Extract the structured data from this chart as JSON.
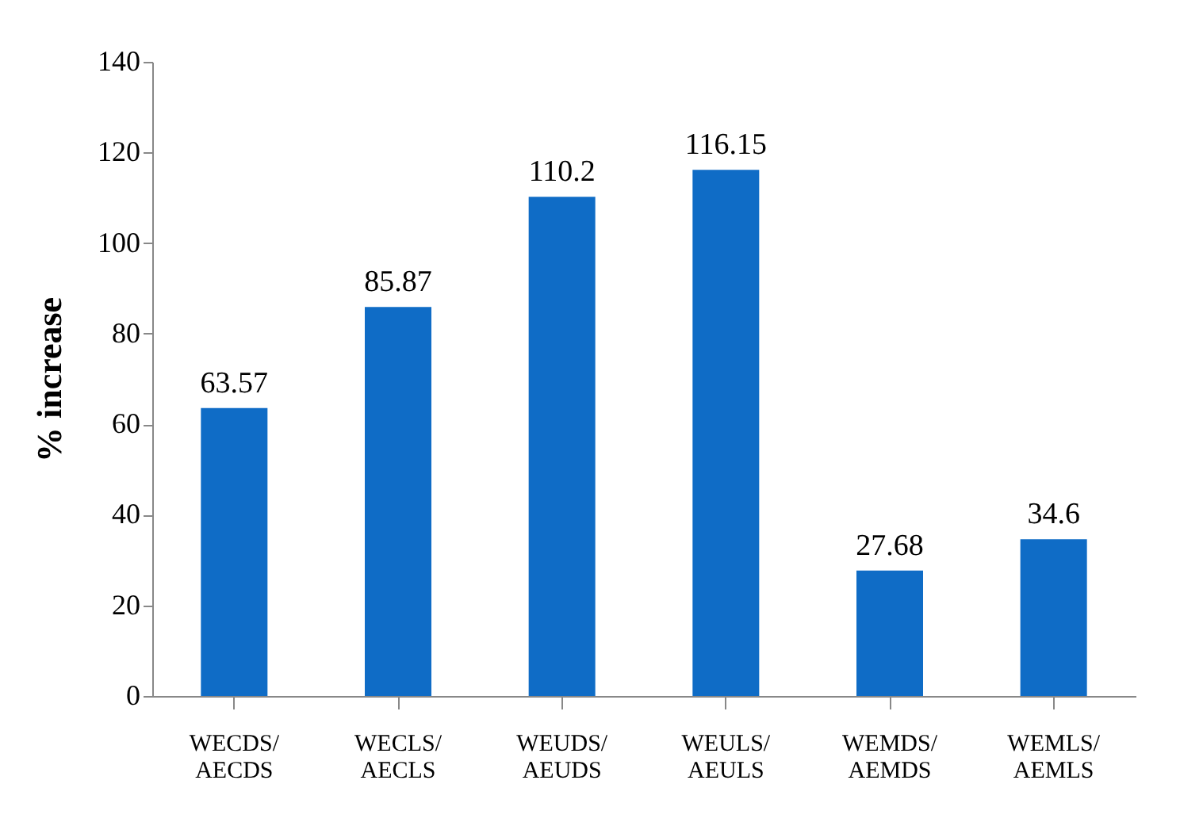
{
  "chart_data": {
    "type": "bar",
    "ylabel": "% increase",
    "categories": [
      "WECDS/\nAECDS",
      "WECLS/\nAECLS",
      "WEUDS/\nAEUDS",
      "WEULS/\nAEULS",
      "WEMDS/\nAEMDS",
      "WEMLS/\nAEMLS"
    ],
    "values": [
      63.57,
      85.87,
      110.2,
      116.15,
      27.68,
      34.6
    ],
    "color": "#0f6cc6",
    "ylim": [
      0,
      140
    ],
    "yticks": [
      0,
      20,
      40,
      60,
      80,
      100,
      120,
      140
    ],
    "data_labels": true,
    "grid": false
  }
}
